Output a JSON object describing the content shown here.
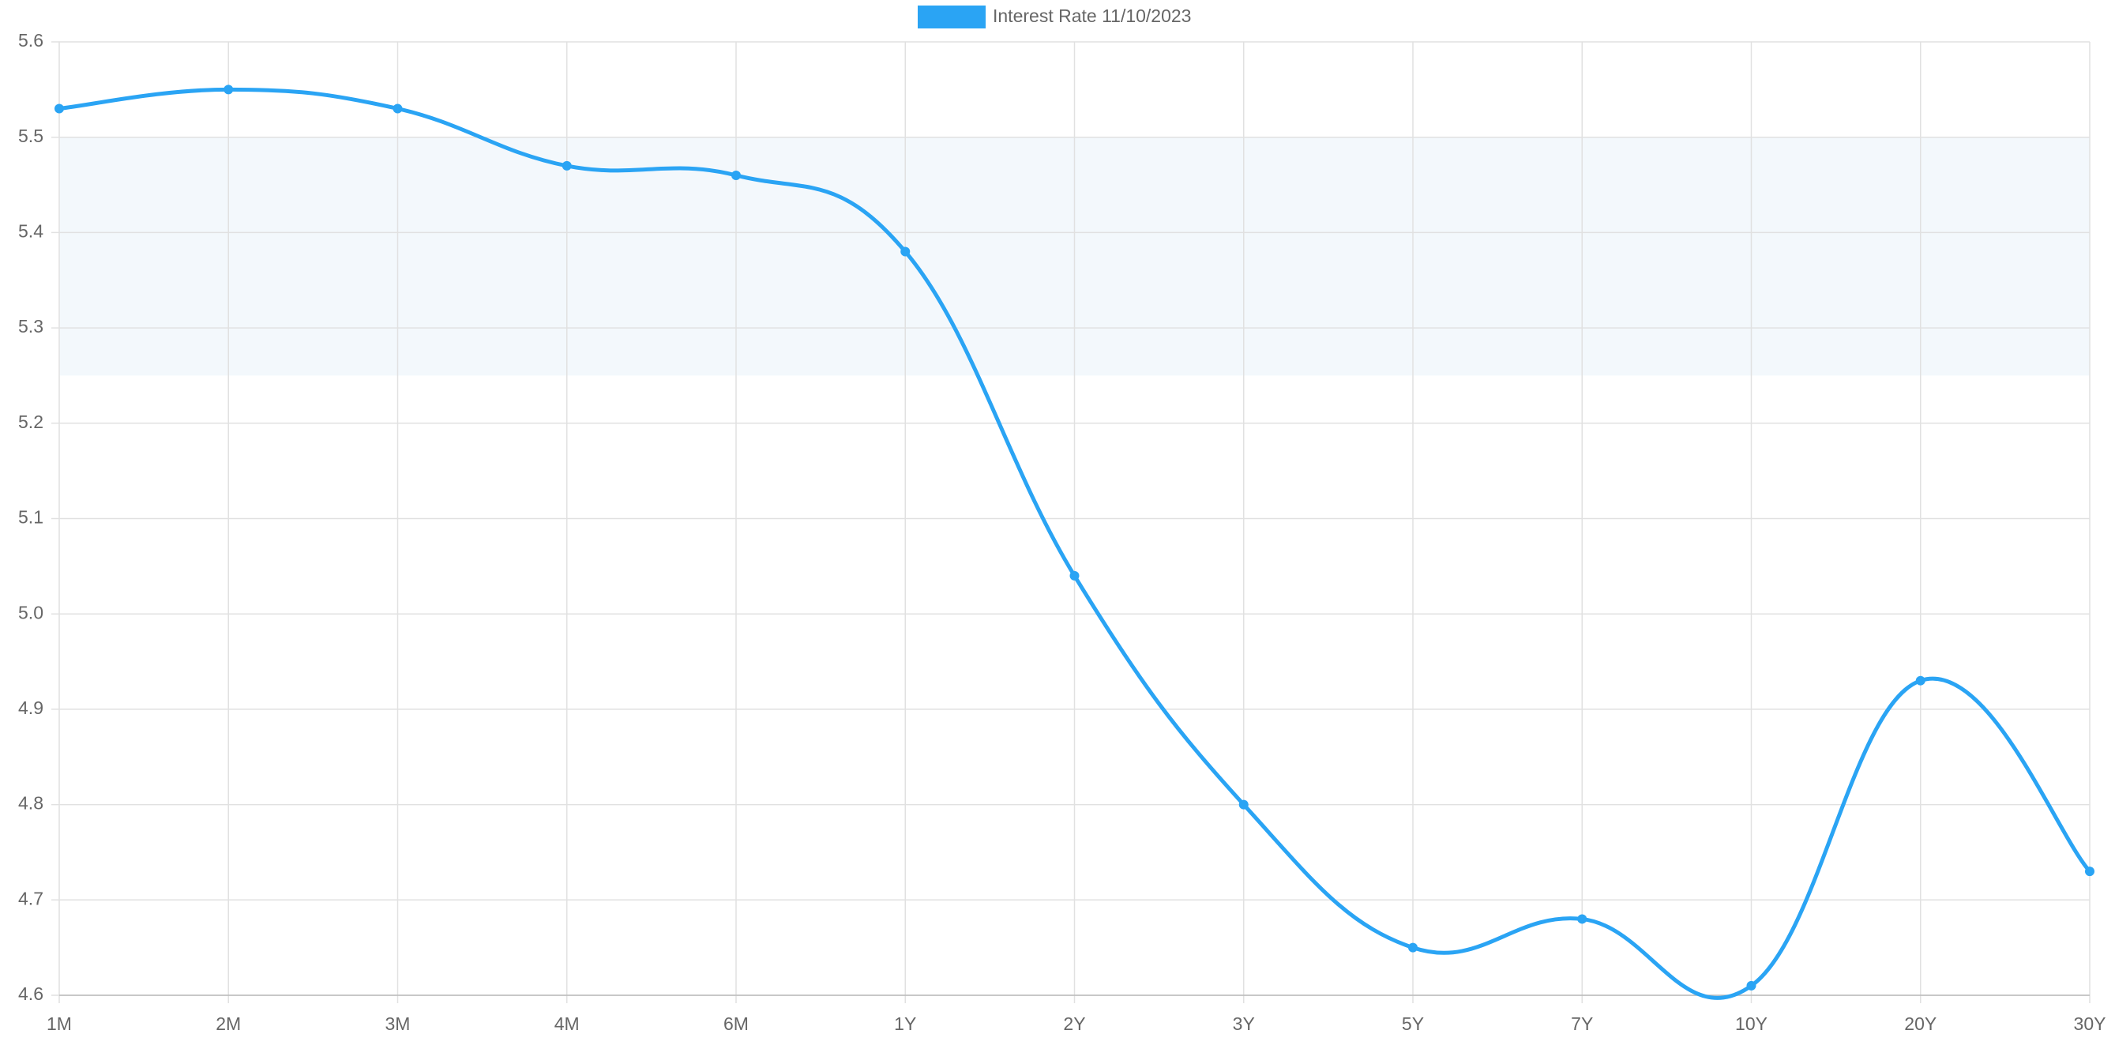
{
  "chart_data": {
    "type": "line",
    "categories": [
      "1M",
      "2M",
      "3M",
      "4M",
      "6M",
      "1Y",
      "2Y",
      "3Y",
      "5Y",
      "7Y",
      "10Y",
      "20Y",
      "30Y"
    ],
    "series": [
      {
        "name": "Interest Rate 11/10/2023",
        "color": "#2aa4f4",
        "values": [
          5.53,
          5.55,
          5.53,
          5.47,
          5.46,
          5.38,
          5.04,
          4.8,
          4.65,
          4.68,
          4.61,
          4.93,
          4.73
        ]
      }
    ],
    "ylim": [
      4.6,
      5.6
    ],
    "yticks": [
      4.6,
      4.7,
      4.8,
      4.9,
      {
        "value": 5,
        "label": "5.0"
      },
      5.1,
      5.2,
      5.3,
      5.4,
      5.5,
      5.6
    ],
    "band": [
      5.25,
      5.5
    ],
    "band_color": "#f3f8fc",
    "grid": true,
    "legend": "top"
  }
}
